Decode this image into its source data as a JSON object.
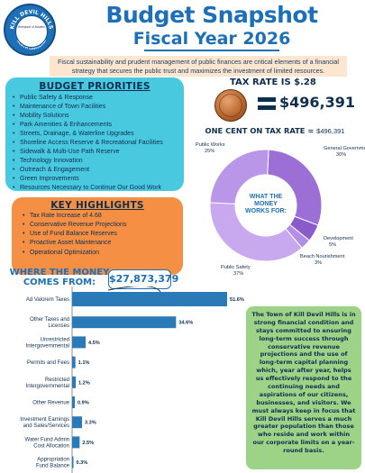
{
  "seal": {
    "text_top": "KILL DEVIL HILLS",
    "text_mid": "Birthplace of Aviation",
    "text_bottom": "NORTH CAROLINA"
  },
  "header": {
    "title": "Budget Snapshot",
    "subtitle": "Fiscal Year 2026",
    "intro": "Fiscal sustainability and prudent management of public finances are critical elements of a financial strategy that secures the public trust and maximizes the investment of limited resources."
  },
  "priorities": {
    "heading": "BUDGET PRIORITIES",
    "items": [
      "Public Safety & Response",
      "Maintenance of Town Facilities",
      "Mobility Solutions",
      "Park Amenities & Enhancements",
      "Streets, Drainage, & Waterline Upgrades",
      "Shoreline Access Reserve & Recreational Facilities",
      "Sidewalk & Multi-Use Path Reserve",
      "Technology Innovation",
      "Outreach & Engagement",
      "Green Improvements",
      "Resources Necessary to Continue Our Good Work"
    ]
  },
  "highlights": {
    "heading": "KEY HIGHLIGHTS",
    "items": [
      "Tax Rate Increase of 4.68",
      "Conservative Revenue Projections",
      "Use of Fund Balance Reserves",
      "Proactive Asset Maintenance",
      "Operational Optimization"
    ]
  },
  "tax": {
    "rate_label": "TAX RATE IS $.28",
    "amount": "$496,391",
    "one_cent_label": "ONE CENT ON TAX RATE = ",
    "one_cent_value": "$496,391"
  },
  "colors": {
    "brand_blue": "#1d6fb8",
    "cyan": "#48c9e0",
    "orange": "#f58f44",
    "green": "#9cd386",
    "donut_purple": "#9b6fd6",
    "donut_light": "#c8a8ee",
    "bar_blue": "#2a7ab8"
  },
  "chart_data": [
    {
      "type": "pie",
      "title": "",
      "center_label": "WHAT THE MONEY WORKS FOR:",
      "slices": [
        {
          "label": "General Government",
          "value": 30
        },
        {
          "label": "Development",
          "value": 5
        },
        {
          "label": "Beach Nourishment",
          "value": 3
        },
        {
          "label": "Public Safety",
          "value": 37
        },
        {
          "label": "Public Works",
          "value": 25
        }
      ]
    },
    {
      "type": "bar",
      "title": "WHERE THE MONEY COMES FROM:",
      "total": "$27,873,379",
      "orientation": "horizontal",
      "categories": [
        "Ad Valorem Taxes",
        "Other Taxes and Licenses",
        "Unrestricted Intergovernmental",
        "Permits and Fees",
        "Restricted Intergovernmental",
        "Other Revenue",
        "Investment Earnings and Sales/Services",
        "Water Fund Admin Cost Allocation",
        "Appropriation Fund Balance"
      ],
      "values": [
        51.6,
        34.6,
        4.5,
        1.1,
        1.2,
        0.9,
        3.3,
        2.5,
        0.3
      ],
      "value_labels": [
        "51.6%",
        "34.6%",
        "4.5%",
        "1.1%",
        "1.2%",
        "0.9%",
        "3.3%",
        "2.5%",
        "0.3%"
      ]
    }
  ],
  "note": "The Town of Kill Devil Hills is in strong financial condition and stays committed to ensuring long-term success through conservative revenue projections and the use of long-term capital planning which, year after year, helps us effectively respond to the continuing needs and aspirations of our citizens, businesses, and visitors. We must always keep in focus that Kill Devil Hills serves a much greater population than those who reside and work within our corporate limits on a year-round basis."
}
